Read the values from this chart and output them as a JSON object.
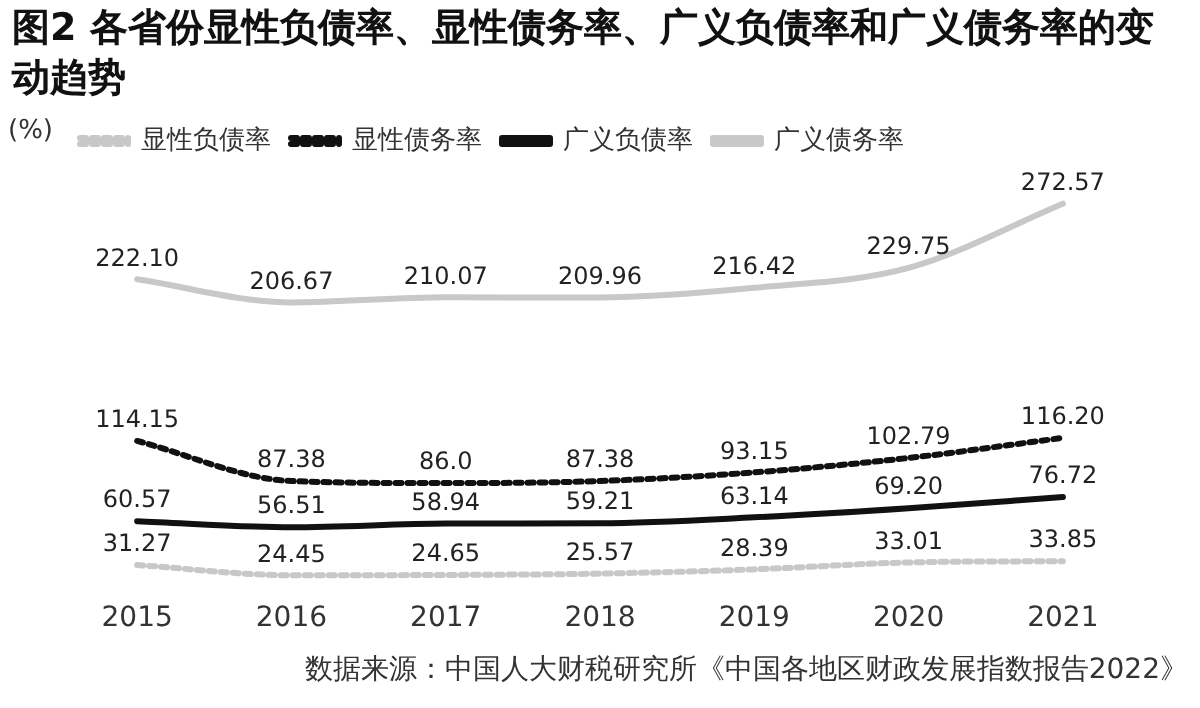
{
  "chart_data": {
    "type": "line",
    "title": "图2  各省份显性负债率、显性债务率、广义负债率和广义债务率的变动趋势",
    "ylabel": "(%)",
    "categories": [
      "2015",
      "2016",
      "2017",
      "2018",
      "2019",
      "2020",
      "2021"
    ],
    "series": [
      {
        "name": "显性负债率",
        "color": "#c8c8c8",
        "line_style": "dotted",
        "values": [
          31.27,
          24.45,
          24.65,
          25.57,
          28.39,
          33.01,
          33.85
        ],
        "value_labels": [
          "31.27",
          "24.45",
          "24.65",
          "25.57",
          "28.39",
          "33.01",
          "33.85"
        ]
      },
      {
        "name": "显性债务率",
        "color": "#111111",
        "line_style": "dotted",
        "values": [
          114.15,
          87.38,
          86.0,
          87.38,
          93.15,
          102.79,
          116.2
        ],
        "value_labels": [
          "114.15",
          "87.38",
          "86.0",
          "87.38",
          "93.15",
          "102.79",
          "116.20"
        ]
      },
      {
        "name": "广义负债率",
        "color": "#111111",
        "line_style": "solid",
        "values": [
          60.57,
          56.51,
          58.94,
          59.21,
          63.14,
          69.2,
          76.72
        ],
        "value_labels": [
          "60.57",
          "56.51",
          "58.94",
          "59.21",
          "63.14",
          "69.20",
          "76.72"
        ]
      },
      {
        "name": "广义债务率",
        "color": "#c8c8c8",
        "line_style": "solid",
        "values": [
          222.1,
          206.67,
          210.07,
          209.96,
          216.42,
          229.75,
          272.57
        ],
        "value_labels": [
          "222.10",
          "206.67",
          "210.07",
          "209.96",
          "216.42",
          "229.75",
          "272.57"
        ]
      }
    ],
    "grid": false,
    "legend": "top",
    "marker": "none",
    "annotations": [
      "数据来源：中国人大财税研究所《中国各地区财政发展指数报告2022》"
    ]
  }
}
